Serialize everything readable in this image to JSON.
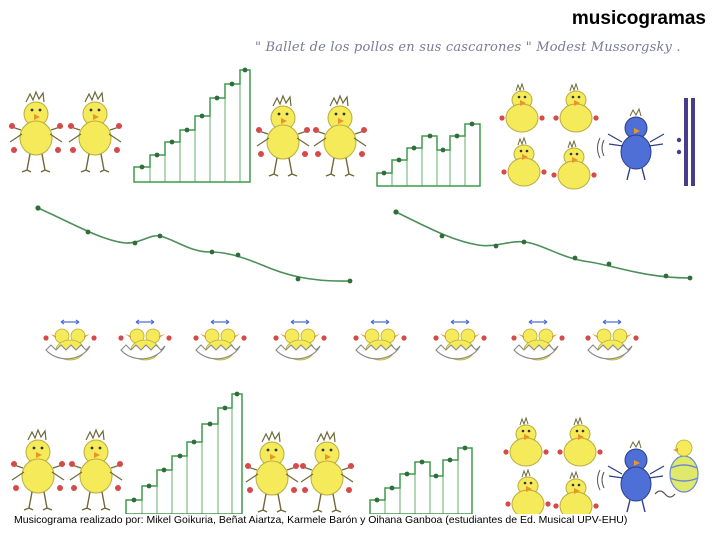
{
  "slide": {
    "title": "musicogramas",
    "handwritten_title": "\" Ballet de los pollos en sus cascarones \"  Modest Mussorgsky .",
    "credits": "Musicograma realizado por: Mikel Goikuria, Beñat Aiartza, Karmele Barón y Oihana Ganboa (estudiantes de Ed. Musical UPV-EHU)"
  },
  "colors": {
    "chick": "#f4ea5a",
    "chick_outline": "#6e6a3a",
    "beak": "#e9932b",
    "staircase_fill": "#3f9a4a",
    "dot": "#d74a4a",
    "blue_chick": "#4e6fd6",
    "bars": "#4a3c8a",
    "melody_line": "#4c8f5a",
    "egg_outline": "#888888"
  },
  "icons": [
    "chick-icon",
    "blue-chick-icon",
    "egg-chick-icon",
    "staircase-icon",
    "melody-curve-icon",
    "repeat-bar-icon",
    "easter-egg-icon"
  ]
}
